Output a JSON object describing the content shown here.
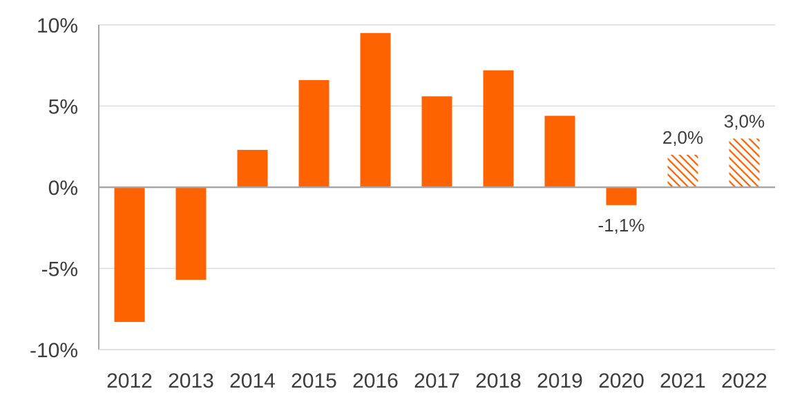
{
  "chart_data": {
    "type": "bar",
    "categories": [
      "2012",
      "2013",
      "2014",
      "2015",
      "2016",
      "2017",
      "2018",
      "2019",
      "2020",
      "2021",
      "2022"
    ],
    "values": [
      -8.3,
      -5.7,
      2.3,
      6.6,
      9.5,
      5.6,
      7.2,
      4.4,
      -1.1,
      2.0,
      3.0
    ],
    "forecast": [
      false,
      false,
      false,
      false,
      false,
      false,
      false,
      false,
      false,
      true,
      true
    ],
    "data_labels": [
      null,
      null,
      null,
      null,
      null,
      null,
      null,
      null,
      "-1,1%",
      "2,0%",
      "3,0%"
    ],
    "ylim": [
      -10,
      10
    ],
    "yticks": [
      10,
      5,
      0,
      -5,
      -10
    ],
    "ytick_labels": [
      "10%",
      "5%",
      "0%",
      "-5%",
      "-10%"
    ],
    "title": "",
    "xlabel": "",
    "ylabel": "",
    "grid": true,
    "colors": {
      "bar": "#FF6200",
      "grid": "#d9d9d9",
      "zero_line": "#a6a6a6",
      "axis": "#a6a6a6",
      "text": "#3d3d3d"
    }
  }
}
